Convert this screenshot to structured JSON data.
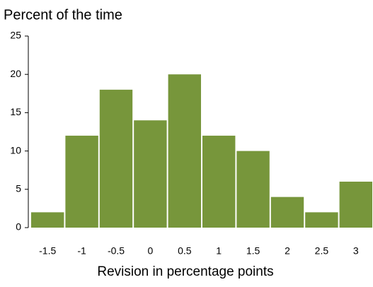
{
  "chart_data": {
    "type": "bar",
    "title": "Percent of the time",
    "x_label": "Revision in percentage points",
    "categories": [
      "-1.5",
      "-1",
      "-0.5",
      "0",
      "0.5",
      "1",
      "1.5",
      "2",
      "2.5",
      "3"
    ],
    "values": [
      2,
      12,
      18,
      14,
      20,
      12,
      10,
      4,
      2,
      6
    ],
    "color": "#77963b",
    "ylim": [
      0,
      25
    ],
    "yticks": [
      0,
      5,
      10,
      15,
      20,
      25
    ],
    "grid": false
  }
}
